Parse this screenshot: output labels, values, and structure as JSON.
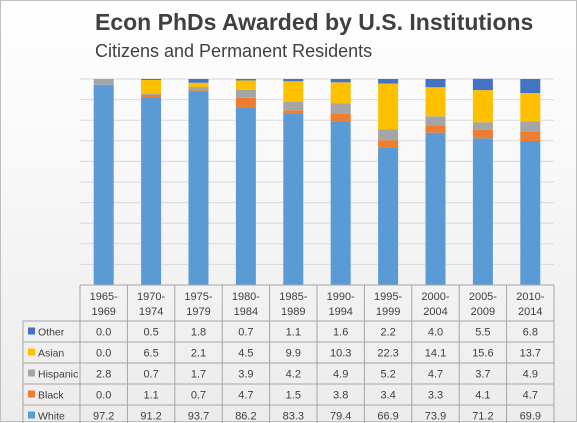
{
  "chart_data": {
    "type": "bar",
    "stacked": true,
    "title": "Econ PhDs Awarded by U.S. Institutions",
    "subtitle": "Citizens and Permanent Residents",
    "categories": [
      [
        "1965-",
        "1969"
      ],
      [
        "1970-",
        "1974"
      ],
      [
        "1975-",
        "1979"
      ],
      [
        "1980-",
        "1984"
      ],
      [
        "1985-",
        "1989"
      ],
      [
        "1990-",
        "1994"
      ],
      [
        "1995-",
        "1999"
      ],
      [
        "2000-",
        "2004"
      ],
      [
        "2005-",
        "2009"
      ],
      [
        "2010-",
        "2014"
      ]
    ],
    "ylim": [
      0,
      100
    ],
    "grid": true,
    "legend": "data-table",
    "series": [
      {
        "name": "Other",
        "color": "#4472c4",
        "values": [
          0.0,
          0.5,
          1.8,
          0.7,
          1.1,
          1.6,
          2.2,
          4.0,
          5.5,
          6.8
        ]
      },
      {
        "name": "Asian",
        "color": "#ffc000",
        "values": [
          0.0,
          6.5,
          2.1,
          4.5,
          9.9,
          10.3,
          22.3,
          14.1,
          15.6,
          13.7
        ]
      },
      {
        "name": "Hispanic",
        "color": "#a5a5a5",
        "values": [
          2.8,
          0.7,
          1.7,
          3.9,
          4.2,
          4.9,
          5.2,
          4.7,
          3.7,
          4.9
        ]
      },
      {
        "name": "Black",
        "color": "#ed7d31",
        "values": [
          0.0,
          1.1,
          0.7,
          4.7,
          1.5,
          3.8,
          3.4,
          3.3,
          4.1,
          4.7
        ]
      },
      {
        "name": "White",
        "color": "#5b9bd5",
        "values": [
          97.2,
          91.2,
          93.7,
          86.2,
          83.3,
          79.4,
          66.9,
          73.9,
          71.2,
          69.9
        ]
      }
    ],
    "stack_order_bottom_to_top": [
      "White",
      "Black",
      "Hispanic",
      "Asian",
      "Other"
    ],
    "value_labels": {
      "Other": [
        "0.0",
        "0.5",
        "1.8",
        "0.7",
        "1.1",
        "1.6",
        "2.2",
        "4.0",
        "5.5",
        "6.8"
      ],
      "Asian": [
        "0.0",
        "6.5",
        "2.1",
        "4.5",
        "9.9",
        "10.3",
        "22.3",
        "14.1",
        "15.6",
        "13.7"
      ],
      "Hispanic": [
        "2.8",
        "0.7",
        "1.7",
        "3.9",
        "4.2",
        "4.9",
        "5.2",
        "4.7",
        "3.7",
        "4.9"
      ],
      "Black": [
        "0.0",
        "1.1",
        "0.7",
        "4.7",
        "1.5",
        "3.8",
        "3.4",
        "3.3",
        "4.1",
        "4.7"
      ],
      "White": [
        "97.2",
        "91.2",
        "93.7",
        "86.2",
        "83.3",
        "79.4",
        "66.9",
        "73.9",
        "71.2",
        "69.9"
      ]
    }
  }
}
